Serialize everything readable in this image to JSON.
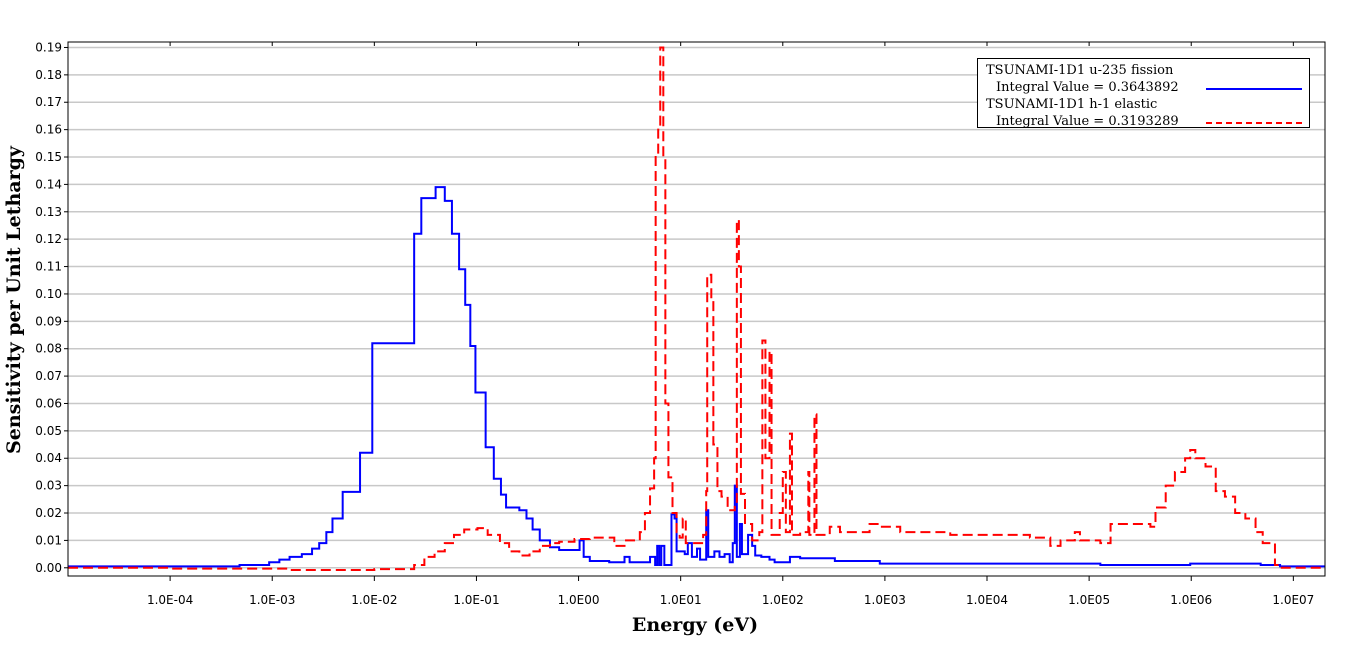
{
  "chart_data": {
    "type": "line",
    "x_scale": "log10",
    "x_values_are": "log10 of Energy (eV)",
    "xlabel": "Energy (eV)",
    "ylabel": "Sensitivity per Unit Lethargy",
    "xlim_log10": [
      -5.0,
      7.31
    ],
    "ylim": [
      -0.003,
      0.192
    ],
    "grid": "horizontal",
    "legend_position": "top-right",
    "x_tick_log10": [
      -4,
      -3,
      -2,
      -1,
      0,
      1,
      2,
      3,
      4,
      5,
      6,
      7
    ],
    "x_tick_labels": [
      "1.0E-04",
      "1.0E-03",
      "1.0E-02",
      "1.0E-01",
      "1.0E00",
      "1.0E01",
      "1.0E02",
      "1.0E03",
      "1.0E04",
      "1.0E05",
      "1.0E06",
      "1.0E07"
    ],
    "y_ticks": [
      0,
      0.01,
      0.02,
      0.03,
      0.04,
      0.05,
      0.06,
      0.07,
      0.08,
      0.09,
      0.1,
      0.11,
      0.12,
      0.13,
      0.14,
      0.15,
      0.16,
      0.17,
      0.18,
      0.19
    ],
    "y_tick_labels": [
      "0.00",
      "0.01",
      "0.02",
      "0.03",
      "0.04",
      "0.05",
      "0.06",
      "0.07",
      "0.08",
      "0.09",
      "0.10",
      "0.11",
      "0.12",
      "0.13",
      "0.14",
      "0.15",
      "0.16",
      "0.17",
      "0.18",
      "0.19"
    ],
    "series": [
      {
        "name": "TSUNAMI-1D1 u-235 fission",
        "integral_label": "Integral Value = 0.3643892",
        "color": "#0000ff",
        "style": "solid",
        "points": [
          [
            -5.0,
            0.0005
          ],
          [
            -3.32,
            0.001
          ],
          [
            -3.03,
            0.002
          ],
          [
            -2.93,
            0.003
          ],
          [
            -2.83,
            0.004
          ],
          [
            -2.71,
            0.005
          ],
          [
            -2.61,
            0.007
          ],
          [
            -2.54,
            0.009
          ],
          [
            -2.47,
            0.013
          ],
          [
            -2.41,
            0.018
          ],
          [
            -2.31,
            0.0277
          ],
          [
            -2.14,
            0.042
          ],
          [
            -2.02,
            0.082
          ],
          [
            -1.61,
            0.122
          ],
          [
            -1.54,
            0.135
          ],
          [
            -1.4,
            0.139
          ],
          [
            -1.31,
            0.134
          ],
          [
            -1.24,
            0.122
          ],
          [
            -1.17,
            0.109
          ],
          [
            -1.11,
            0.096
          ],
          [
            -1.06,
            0.081
          ],
          [
            -1.01,
            0.064
          ],
          [
            -0.91,
            0.044
          ],
          [
            -0.83,
            0.0325
          ],
          [
            -0.76,
            0.0267
          ],
          [
            -0.71,
            0.022
          ],
          [
            -0.58,
            0.021
          ],
          [
            -0.51,
            0.018
          ],
          [
            -0.45,
            0.014
          ],
          [
            -0.38,
            0.01
          ],
          [
            -0.28,
            0.0075
          ],
          [
            -0.19,
            0.0065
          ],
          [
            -0.04,
            0.0065
          ],
          [
            0.01,
            0.01
          ],
          [
            0.05,
            0.004
          ],
          [
            0.11,
            0.0025
          ],
          [
            0.3,
            0.002
          ],
          [
            0.45,
            0.004
          ],
          [
            0.5,
            0.002
          ],
          [
            0.7,
            0.004
          ],
          [
            0.75,
            0.001
          ],
          [
            0.77,
            0.008
          ],
          [
            0.79,
            0.001
          ],
          [
            0.81,
            0.008
          ],
          [
            0.84,
            0.001
          ],
          [
            0.91,
            0.0195
          ],
          [
            0.94,
            0.018
          ],
          [
            0.96,
            0.006
          ],
          [
            1.04,
            0.005
          ],
          [
            1.07,
            0.009
          ],
          [
            1.11,
            0.004
          ],
          [
            1.16,
            0.007
          ],
          [
            1.19,
            0.003
          ],
          [
            1.25,
            0.021
          ],
          [
            1.27,
            0.004
          ],
          [
            1.33,
            0.006
          ],
          [
            1.38,
            0.004
          ],
          [
            1.43,
            0.005
          ],
          [
            1.48,
            0.002
          ],
          [
            1.51,
            0.009
          ],
          [
            1.53,
            0.03
          ],
          [
            1.55,
            0.004
          ],
          [
            1.58,
            0.016
          ],
          [
            1.6,
            0.005
          ],
          [
            1.66,
            0.012
          ],
          [
            1.7,
            0.008
          ],
          [
            1.73,
            0.0045
          ],
          [
            1.79,
            0.004
          ],
          [
            1.87,
            0.003
          ],
          [
            1.92,
            0.002
          ],
          [
            2.07,
            0.004
          ],
          [
            2.17,
            0.0035
          ],
          [
            2.46,
            0.0035
          ],
          [
            2.51,
            0.0025
          ],
          [
            2.85,
            0.0025
          ],
          [
            2.95,
            0.0015
          ],
          [
            3.64,
            0.0015
          ],
          [
            5.11,
            0.001
          ],
          [
            5.99,
            0.0015
          ],
          [
            6.48,
            0.0015
          ],
          [
            6.68,
            0.001
          ],
          [
            6.87,
            0.0005
          ],
          [
            7.31,
            0.0005
          ]
        ]
      },
      {
        "name": "TSUNAMI-1D1 h-1 elastic",
        "integral_label": "Integral Value = 0.3193289",
        "color": "#ff0000",
        "style": "dashed",
        "points": [
          [
            -5.0,
            0.0
          ],
          [
            -4.0,
            -0.0003
          ],
          [
            -2.83,
            -0.0008
          ],
          [
            -2.0,
            -0.0005
          ],
          [
            -1.61,
            0.001
          ],
          [
            -1.51,
            0.004
          ],
          [
            -1.41,
            0.006
          ],
          [
            -1.31,
            0.009
          ],
          [
            -1.22,
            0.012
          ],
          [
            -1.12,
            0.014
          ],
          [
            -0.99,
            0.0145
          ],
          [
            -0.89,
            0.012
          ],
          [
            -0.77,
            0.009
          ],
          [
            -0.68,
            0.006
          ],
          [
            -0.58,
            0.0045
          ],
          [
            -0.48,
            0.006
          ],
          [
            -0.38,
            0.008
          ],
          [
            -0.28,
            0.009
          ],
          [
            -0.19,
            0.0095
          ],
          [
            -0.04,
            0.0105
          ],
          [
            0.11,
            0.011
          ],
          [
            0.35,
            0.008
          ],
          [
            0.45,
            0.01
          ],
          [
            0.6,
            0.013
          ],
          [
            0.65,
            0.02
          ],
          [
            0.7,
            0.029
          ],
          [
            0.74,
            0.04
          ],
          [
            0.755,
            0.15
          ],
          [
            0.78,
            0.16
          ],
          [
            0.8,
            0.19
          ],
          [
            0.83,
            0.15
          ],
          [
            0.85,
            0.06
          ],
          [
            0.88,
            0.033
          ],
          [
            0.92,
            0.02
          ],
          [
            0.96,
            0.013
          ],
          [
            0.99,
            0.011
          ],
          [
            1.02,
            0.018
          ],
          [
            1.05,
            0.009
          ],
          [
            1.14,
            0.009
          ],
          [
            1.22,
            0.012
          ],
          [
            1.25,
            0.028
          ],
          [
            1.26,
            0.107
          ],
          [
            1.3,
            0.097
          ],
          [
            1.32,
            0.045
          ],
          [
            1.36,
            0.028
          ],
          [
            1.4,
            0.026
          ],
          [
            1.46,
            0.021
          ],
          [
            1.53,
            0.023
          ],
          [
            1.55,
            0.127
          ],
          [
            1.57,
            0.11
          ],
          [
            1.59,
            0.027
          ],
          [
            1.63,
            0.016
          ],
          [
            1.7,
            0.01
          ],
          [
            1.77,
            0.013
          ],
          [
            1.8,
            0.083
          ],
          [
            1.83,
            0.04
          ],
          [
            1.87,
            0.079
          ],
          [
            1.89,
            0.012
          ],
          [
            1.97,
            0.02
          ],
          [
            2.0,
            0.035
          ],
          [
            2.03,
            0.013
          ],
          [
            2.07,
            0.049
          ],
          [
            2.09,
            0.012
          ],
          [
            2.17,
            0.013
          ],
          [
            2.25,
            0.035
          ],
          [
            2.26,
            0.012
          ],
          [
            2.31,
            0.056
          ],
          [
            2.33,
            0.012
          ],
          [
            2.46,
            0.015
          ],
          [
            2.56,
            0.013
          ],
          [
            2.85,
            0.016
          ],
          [
            2.95,
            0.015
          ],
          [
            3.15,
            0.013
          ],
          [
            3.64,
            0.012
          ],
          [
            4.42,
            0.011
          ],
          [
            4.62,
            0.008
          ],
          [
            4.72,
            0.01
          ],
          [
            4.86,
            0.013
          ],
          [
            4.91,
            0.01
          ],
          [
            5.11,
            0.009
          ],
          [
            5.21,
            0.016
          ],
          [
            5.6,
            0.015
          ],
          [
            5.65,
            0.022
          ],
          [
            5.75,
            0.03
          ],
          [
            5.84,
            0.035
          ],
          [
            5.94,
            0.04
          ],
          [
            5.99,
            0.043
          ],
          [
            6.04,
            0.04
          ],
          [
            6.14,
            0.037
          ],
          [
            6.24,
            0.028
          ],
          [
            6.33,
            0.026
          ],
          [
            6.43,
            0.02
          ],
          [
            6.53,
            0.018
          ],
          [
            6.63,
            0.013
          ],
          [
            6.7,
            0.009
          ],
          [
            6.79,
            0.0085
          ],
          [
            6.82,
            0.001
          ],
          [
            6.87,
            0.0
          ],
          [
            7.31,
            0.0
          ]
        ]
      }
    ]
  }
}
